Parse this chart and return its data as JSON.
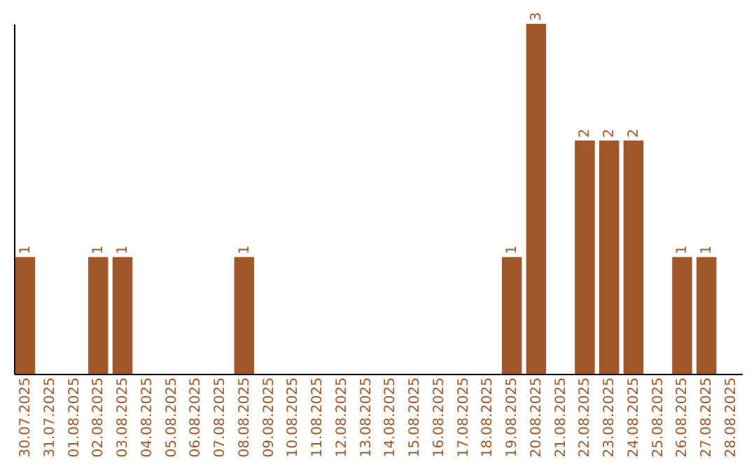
{
  "chart_data": {
    "type": "bar",
    "categories": [
      "30.07.2025",
      "31.07.2025",
      "01.08.2025",
      "02.08.2025",
      "03.08.2025",
      "04.08.2025",
      "05.08.2025",
      "06.08.2025",
      "07.08.2025",
      "08.08.2025",
      "09.08.2025",
      "10.08.2025",
      "11.08.2025",
      "12.08.2025",
      "13.08.2025",
      "14.08.2025",
      "15.08.2025",
      "16.08.2025",
      "17.08.2025",
      "18.08.2025",
      "19.08.2025",
      "20.08.2025",
      "21.08.2025",
      "22.08.2025",
      "23.08.2025",
      "24.08.2025",
      "25.08.2025",
      "26.08.2025",
      "27.08.2025",
      "28.08.2025"
    ],
    "values": [
      1,
      0,
      0,
      1,
      1,
      0,
      0,
      0,
      0,
      1,
      0,
      0,
      0,
      0,
      0,
      0,
      0,
      0,
      0,
      0,
      1,
      3,
      0,
      2,
      2,
      2,
      0,
      1,
      1,
      0
    ],
    "value_labels": [
      "1",
      null,
      null,
      "1",
      "1",
      null,
      null,
      null,
      null,
      "1",
      null,
      null,
      null,
      null,
      null,
      null,
      null,
      null,
      null,
      null,
      "1",
      "3",
      null,
      "2",
      "2",
      "2",
      null,
      "1",
      "1",
      null
    ],
    "color": "#a0582a",
    "tick_labels": "x",
    "grid": false
  }
}
